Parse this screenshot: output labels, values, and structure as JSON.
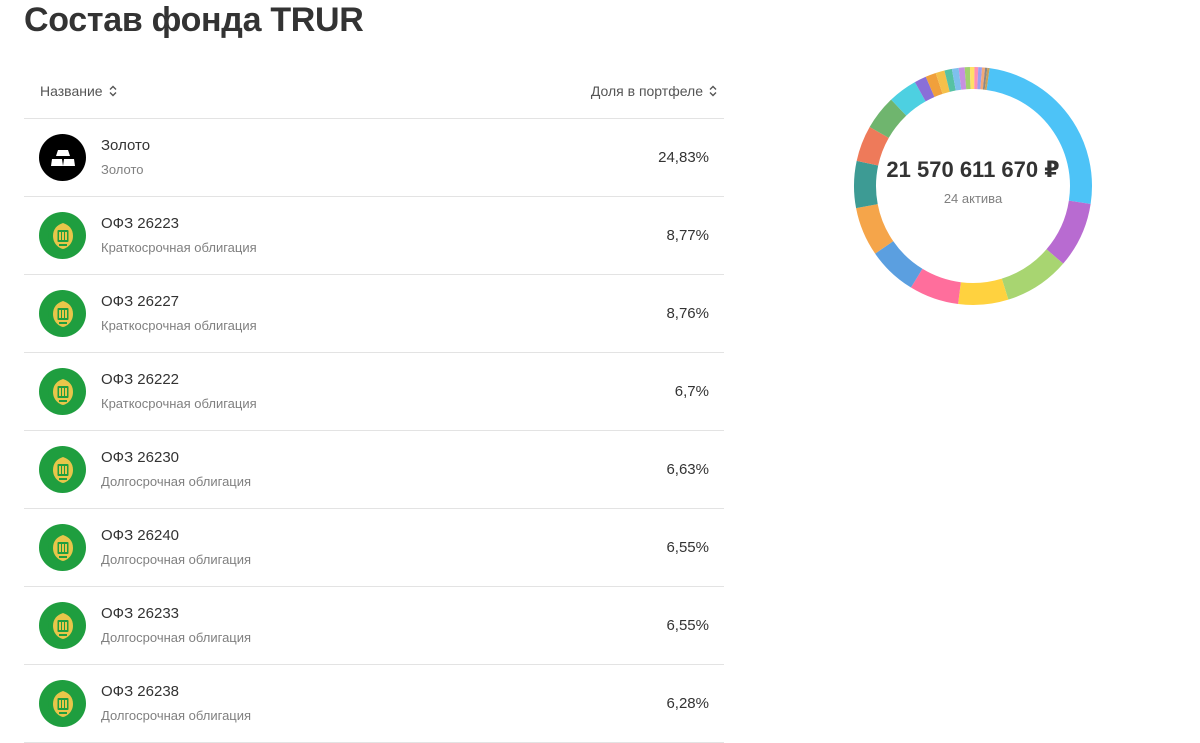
{
  "page": {
    "title": "Состав фонда TRUR"
  },
  "table": {
    "col_name": "Название",
    "col_share": "Доля в портфеле",
    "rows": [
      {
        "name": "Золото",
        "type": "Золото",
        "share": "24,83%",
        "icon": "gold-bars-icon"
      },
      {
        "name": "ОФЗ 26223",
        "type": "Краткосрочная облигация",
        "share": "8,77%",
        "icon": "minfin-emblem-icon"
      },
      {
        "name": "ОФЗ 26227",
        "type": "Краткосрочная облигация",
        "share": "8,76%",
        "icon": "minfin-emblem-icon"
      },
      {
        "name": "ОФЗ 26222",
        "type": "Краткосрочная облигация",
        "share": "6,7%",
        "icon": "minfin-emblem-icon"
      },
      {
        "name": "ОФЗ 26230",
        "type": "Долгосрочная облигация",
        "share": "6,63%",
        "icon": "minfin-emblem-icon"
      },
      {
        "name": "ОФЗ 26240",
        "type": "Долгосрочная облигация",
        "share": "6,55%",
        "icon": "minfin-emblem-icon"
      },
      {
        "name": "ОФЗ 26233",
        "type": "Долгосрочная облигация",
        "share": "6,55%",
        "icon": "minfin-emblem-icon"
      },
      {
        "name": "ОФЗ 26238",
        "type": "Долгосрочная облигация",
        "share": "6,28%",
        "icon": "minfin-emblem-icon"
      }
    ]
  },
  "donut": {
    "total": "21 570 611 670 ₽",
    "count": "24 актива",
    "segments": [
      {
        "value": 24.83,
        "color": "#4dc3f7"
      },
      {
        "value": 8.77,
        "color": "#b86bd1"
      },
      {
        "value": 8.76,
        "color": "#a8d571"
      },
      {
        "value": 6.7,
        "color": "#ffd23f"
      },
      {
        "value": 6.63,
        "color": "#ff6e9c"
      },
      {
        "value": 6.55,
        "color": "#5b9fe0"
      },
      {
        "value": 6.55,
        "color": "#f5a54a"
      },
      {
        "value": 6.28,
        "color": "#3d9b94"
      },
      {
        "value": 4.8,
        "color": "#ee7a5a"
      },
      {
        "value": 4.6,
        "color": "#6fb56e"
      },
      {
        "value": 3.9,
        "color": "#4dd0e1"
      },
      {
        "value": 1.6,
        "color": "#8a6fd8"
      },
      {
        "value": 1.4,
        "color": "#f0a03c"
      },
      {
        "value": 1.2,
        "color": "#f5c04a"
      },
      {
        "value": 1.0,
        "color": "#56c2a4"
      },
      {
        "value": 0.9,
        "color": "#7ec0ee"
      },
      {
        "value": 0.8,
        "color": "#c78fe0"
      },
      {
        "value": 0.7,
        "color": "#a2d06e"
      },
      {
        "value": 0.6,
        "color": "#ffe066"
      },
      {
        "value": 0.5,
        "color": "#ff8fb2"
      },
      {
        "value": 0.5,
        "color": "#9aa0f0"
      },
      {
        "value": 0.4,
        "color": "#f3a877"
      },
      {
        "value": 0.3,
        "color": "#888888"
      },
      {
        "value": 0.3,
        "color": "#c7a05a"
      }
    ]
  }
}
